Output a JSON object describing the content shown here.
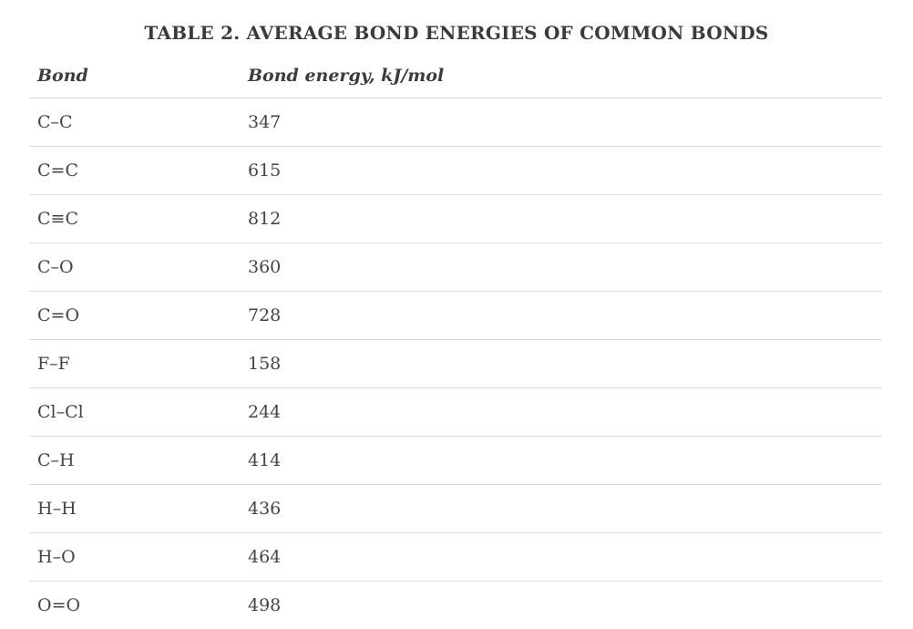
{
  "table": {
    "caption": "TABLE 2. AVERAGE BOND ENERGIES OF COMMON BONDS",
    "headers": {
      "bond": "Bond",
      "energy": "Bond energy, kJ/mol"
    },
    "rows": [
      {
        "bond": "C–C",
        "energy": "347"
      },
      {
        "bond": "C=C",
        "energy": "615"
      },
      {
        "bond": "C≡C",
        "energy": "812"
      },
      {
        "bond": "C–O",
        "energy": "360"
      },
      {
        "bond": "C=O",
        "energy": "728"
      },
      {
        "bond": "F–F",
        "energy": "158"
      },
      {
        "bond": "Cl–Cl",
        "energy": "244"
      },
      {
        "bond": "C–H",
        "energy": "414"
      },
      {
        "bond": "H–H",
        "energy": "436"
      },
      {
        "bond": "H–O",
        "energy": "464"
      },
      {
        "bond": "O=O",
        "energy": "498"
      }
    ]
  }
}
